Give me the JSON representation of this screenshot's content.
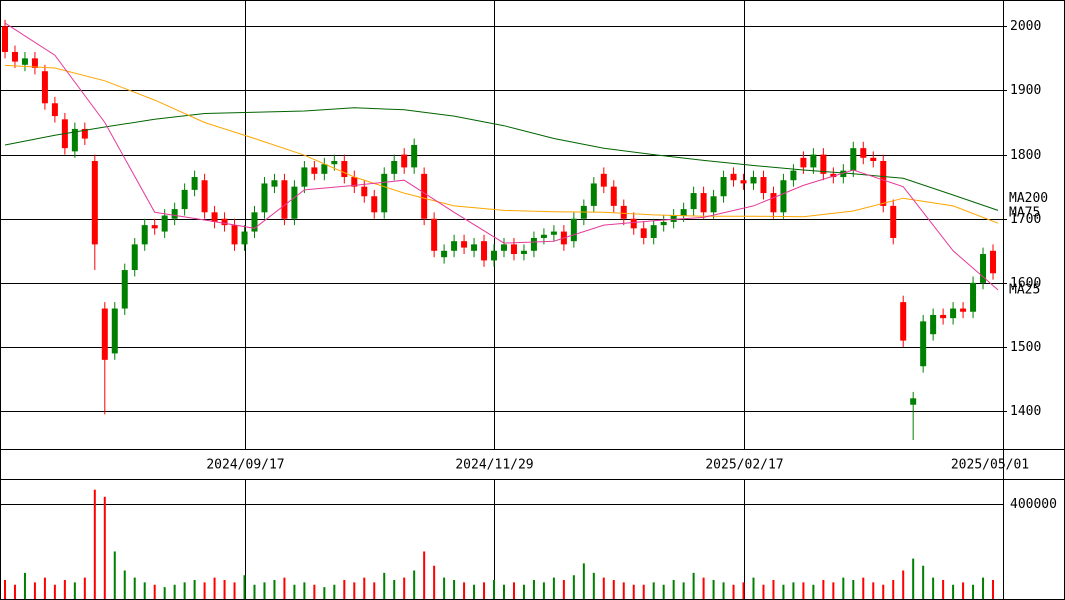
{
  "chart_data": {
    "type": "candlestick",
    "grid": true,
    "up_color": "#008000",
    "down_color": "#ff0000",
    "xlim": [
      -1,
      200
    ],
    "xticks": [
      {
        "value": 48,
        "label": "2024/09/17"
      },
      {
        "value": 98,
        "label": "2024/11/29"
      },
      {
        "value": 148,
        "label": "2025/02/17"
      },
      {
        "value": 200,
        "label": "2025/05/01"
      }
    ],
    "ylim": [
      1341,
      2041
    ],
    "yticks": [
      1400,
      1500,
      1600,
      1700,
      1800,
      1900,
      2000
    ],
    "x": [
      0,
      2,
      4,
      6,
      8,
      10,
      12,
      14,
      16,
      18,
      20,
      22,
      24,
      26,
      28,
      30,
      32,
      34,
      36,
      38,
      40,
      42,
      44,
      46,
      48,
      50,
      52,
      54,
      56,
      58,
      60,
      62,
      64,
      66,
      68,
      70,
      72,
      74,
      76,
      78,
      80,
      82,
      84,
      86,
      88,
      90,
      92,
      94,
      96,
      98,
      100,
      102,
      104,
      106,
      108,
      110,
      112,
      114,
      116,
      118,
      120,
      122,
      124,
      126,
      128,
      130,
      132,
      134,
      136,
      138,
      140,
      142,
      144,
      146,
      148,
      150,
      152,
      154,
      156,
      158,
      160,
      162,
      164,
      166,
      168,
      170,
      172,
      174,
      176,
      178,
      180,
      182,
      184,
      186,
      188,
      190,
      192,
      194,
      196,
      198
    ],
    "open": [
      2000,
      1960,
      1940,
      1950,
      1930,
      1880,
      1855,
      1805,
      1840,
      1790,
      1560,
      1490,
      1560,
      1620,
      1660,
      1690,
      1680,
      1700,
      1715,
      1745,
      1760,
      1710,
      1700,
      1690,
      1660,
      1680,
      1710,
      1750,
      1760,
      1700,
      1750,
      1780,
      1770,
      1785,
      1790,
      1765,
      1750,
      1735,
      1710,
      1770,
      1800,
      1780,
      1770,
      1700,
      1640,
      1650,
      1665,
      1650,
      1665,
      1635,
      1650,
      1660,
      1645,
      1650,
      1670,
      1675,
      1680,
      1665,
      1700,
      1720,
      1770,
      1750,
      1720,
      1700,
      1685,
      1670,
      1690,
      1695,
      1705,
      1715,
      1740,
      1710,
      1735,
      1770,
      1760,
      1755,
      1765,
      1740,
      1710,
      1760,
      1795,
      1780,
      1800,
      1770,
      1765,
      1775,
      1810,
      1795,
      1790,
      1720,
      1570,
      1410,
      1470,
      1520,
      1550,
      1545,
      1560,
      1555,
      1600,
      1650
    ],
    "high": [
      2010,
      1970,
      1960,
      1960,
      1940,
      1890,
      1865,
      1850,
      1850,
      1800,
      1570,
      1570,
      1630,
      1670,
      1700,
      1700,
      1715,
      1725,
      1755,
      1775,
      1770,
      1720,
      1710,
      1700,
      1690,
      1720,
      1765,
      1770,
      1770,
      1760,
      1790,
      1790,
      1795,
      1800,
      1800,
      1775,
      1760,
      1745,
      1780,
      1800,
      1810,
      1825,
      1780,
      1710,
      1660,
      1675,
      1675,
      1670,
      1675,
      1660,
      1670,
      1670,
      1660,
      1680,
      1685,
      1690,
      1690,
      1710,
      1730,
      1765,
      1780,
      1760,
      1730,
      1710,
      1695,
      1700,
      1705,
      1715,
      1725,
      1750,
      1750,
      1745,
      1775,
      1780,
      1770,
      1775,
      1775,
      1750,
      1770,
      1785,
      1805,
      1810,
      1810,
      1780,
      1785,
      1820,
      1820,
      1805,
      1800,
      1730,
      1580,
      1430,
      1550,
      1560,
      1560,
      1570,
      1570,
      1610,
      1655,
      1660
    ],
    "low": [
      1950,
      1935,
      1930,
      1925,
      1870,
      1850,
      1800,
      1795,
      1815,
      1620,
      1395,
      1480,
      1550,
      1610,
      1650,
      1675,
      1670,
      1690,
      1705,
      1735,
      1700,
      1685,
      1680,
      1650,
      1650,
      1670,
      1700,
      1740,
      1690,
      1690,
      1740,
      1760,
      1760,
      1775,
      1755,
      1740,
      1725,
      1700,
      1700,
      1760,
      1770,
      1770,
      1690,
      1640,
      1630,
      1640,
      1645,
      1640,
      1625,
      1625,
      1640,
      1635,
      1635,
      1640,
      1660,
      1665,
      1650,
      1655,
      1690,
      1710,
      1740,
      1710,
      1690,
      1675,
      1660,
      1660,
      1680,
      1685,
      1695,
      1705,
      1700,
      1700,
      1725,
      1750,
      1745,
      1745,
      1730,
      1700,
      1700,
      1750,
      1770,
      1770,
      1760,
      1755,
      1755,
      1765,
      1785,
      1780,
      1710,
      1660,
      1500,
      1355,
      1460,
      1510,
      1535,
      1535,
      1545,
      1545,
      1590,
      1605
    ],
    "close": [
      1960,
      1945,
      1950,
      1935,
      1880,
      1860,
      1810,
      1840,
      1825,
      1660,
      1480,
      1560,
      1620,
      1660,
      1690,
      1685,
      1705,
      1715,
      1745,
      1765,
      1710,
      1695,
      1690,
      1660,
      1680,
      1710,
      1755,
      1760,
      1700,
      1750,
      1780,
      1770,
      1785,
      1790,
      1765,
      1750,
      1735,
      1710,
      1770,
      1790,
      1780,
      1815,
      1700,
      1650,
      1650,
      1665,
      1655,
      1660,
      1635,
      1650,
      1660,
      1645,
      1650,
      1670,
      1675,
      1680,
      1660,
      1700,
      1720,
      1755,
      1750,
      1720,
      1700,
      1685,
      1670,
      1690,
      1695,
      1705,
      1715,
      1740,
      1710,
      1735,
      1765,
      1760,
      1755,
      1765,
      1740,
      1710,
      1760,
      1775,
      1780,
      1800,
      1770,
      1765,
      1775,
      1810,
      1795,
      1790,
      1720,
      1670,
      1510,
      1420,
      1540,
      1550,
      1545,
      1560,
      1555,
      1600,
      1645,
      1615
    ],
    "moving_averages": [
      {
        "name": "MA200",
        "color": "#006400",
        "x": [
          0,
          10,
          20,
          30,
          40,
          50,
          60,
          70,
          80,
          90,
          100,
          110,
          120,
          130,
          140,
          150,
          160,
          170,
          180,
          190,
          199
        ],
        "values": [
          1815,
          1830,
          1843,
          1855,
          1864,
          1866,
          1868,
          1873,
          1870,
          1860,
          1845,
          1825,
          1810,
          1800,
          1791,
          1783,
          1776,
          1770,
          1763,
          1737,
          1713
        ]
      },
      {
        "name": "MA75",
        "color": "#ffa500",
        "x": [
          0,
          10,
          20,
          30,
          40,
          50,
          60,
          70,
          80,
          90,
          100,
          110,
          120,
          130,
          140,
          150,
          160,
          170,
          180,
          190,
          199
        ],
        "values": [
          1939,
          1935,
          1915,
          1885,
          1850,
          1825,
          1799,
          1765,
          1740,
          1720,
          1713,
          1711,
          1710,
          1706,
          1704,
          1704,
          1703,
          1712,
          1732,
          1720,
          1693
        ]
      },
      {
        "name": "MA25",
        "color": "#e6399b",
        "x": [
          0,
          10,
          20,
          30,
          40,
          50,
          60,
          70,
          80,
          90,
          100,
          110,
          120,
          130,
          140,
          150,
          160,
          170,
          180,
          190,
          199
        ],
        "values": [
          2005,
          1955,
          1850,
          1710,
          1698,
          1685,
          1745,
          1752,
          1760,
          1710,
          1662,
          1665,
          1690,
          1697,
          1702,
          1720,
          1752,
          1776,
          1750,
          1650,
          1589
        ]
      }
    ],
    "volume": {
      "ylim": [
        0,
        505000
      ],
      "yticks": [
        400000
      ],
      "values": [
        80000,
        60000,
        110000,
        70000,
        90000,
        60000,
        80000,
        70000,
        90000,
        460000,
        430000,
        200000,
        120000,
        90000,
        70000,
        60000,
        50000,
        60000,
        70000,
        80000,
        70000,
        90000,
        80000,
        70000,
        100000,
        60000,
        70000,
        80000,
        90000,
        60000,
        70000,
        60000,
        50000,
        60000,
        80000,
        70000,
        90000,
        70000,
        110000,
        80000,
        90000,
        120000,
        200000,
        140000,
        90000,
        80000,
        70000,
        60000,
        70000,
        80000,
        60000,
        70000,
        60000,
        80000,
        70000,
        90000,
        80000,
        100000,
        150000,
        110000,
        90000,
        80000,
        70000,
        60000,
        60000,
        70000,
        60000,
        80000,
        70000,
        110000,
        90000,
        80000,
        70000,
        60000,
        70000,
        90000,
        60000,
        80000,
        60000,
        70000,
        70000,
        60000,
        80000,
        70000,
        90000,
        80000,
        90000,
        70000,
        60000,
        80000,
        120000,
        170000,
        140000,
        90000,
        80000,
        60000,
        70000,
        60000,
        90000,
        80000
      ]
    }
  }
}
